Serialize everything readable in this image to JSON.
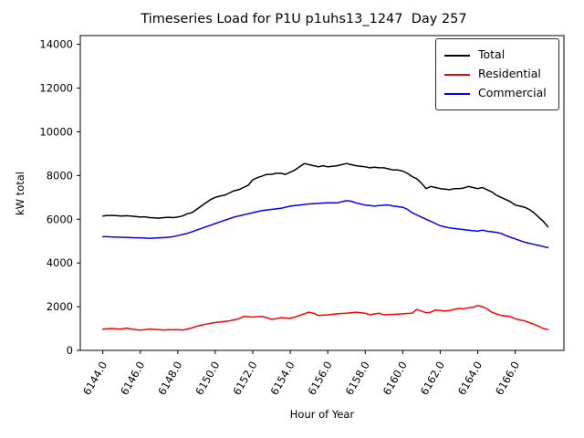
{
  "chart_data": {
    "type": "line",
    "title": "Timeseries Load for P1U p1uhs13_1247  Day 257",
    "xlabel": "Hour of Year",
    "ylabel": "kW total",
    "grid": false,
    "legend_position": "upper right",
    "xlim": [
      6142.8,
      6168.6
    ],
    "ylim": [
      0,
      14400
    ],
    "xticks": [
      6144,
      6146,
      6148,
      6150,
      6152,
      6154,
      6156,
      6158,
      6160,
      6162,
      6164,
      6166
    ],
    "xtick_labels": [
      "6144.0",
      "6146.0",
      "6148.0",
      "6150.0",
      "6152.0",
      "6154.0",
      "6156.0",
      "6158.0",
      "6160.0",
      "6162.0",
      "6164.0",
      "6166.0"
    ],
    "yticks": [
      0,
      2000,
      4000,
      6000,
      8000,
      10000,
      12000,
      14000
    ],
    "ytick_labels": [
      "0",
      "2000",
      "4000",
      "6000",
      "8000",
      "10000",
      "12000",
      "14000"
    ],
    "x": [
      6144.0,
      6144.25,
      6144.5,
      6144.75,
      6145.0,
      6145.25,
      6145.5,
      6145.75,
      6146.0,
      6146.25,
      6146.5,
      6146.75,
      6147.0,
      6147.25,
      6147.5,
      6147.75,
      6148.0,
      6148.25,
      6148.5,
      6148.75,
      6149.0,
      6149.25,
      6149.5,
      6149.75,
      6150.0,
      6150.25,
      6150.5,
      6150.75,
      6151.0,
      6151.25,
      6151.5,
      6151.75,
      6152.0,
      6152.25,
      6152.5,
      6152.75,
      6153.0,
      6153.25,
      6153.5,
      6153.75,
      6154.0,
      6154.25,
      6154.5,
      6154.75,
      6155.0,
      6155.25,
      6155.5,
      6155.75,
      6156.0,
      6156.25,
      6156.5,
      6156.75,
      6157.0,
      6157.25,
      6157.5,
      6157.75,
      6158.0,
      6158.25,
      6158.5,
      6158.75,
      6159.0,
      6159.25,
      6159.5,
      6159.75,
      6160.0,
      6160.25,
      6160.5,
      6160.75,
      6161.0,
      6161.25,
      6161.5,
      6161.75,
      6162.0,
      6162.25,
      6162.5,
      6162.75,
      6163.0,
      6163.25,
      6163.5,
      6163.75,
      6164.0,
      6164.25,
      6164.5,
      6164.75,
      6165.0,
      6165.25,
      6165.5,
      6165.75,
      6166.0,
      6166.25,
      6166.5,
      6166.75,
      6167.0,
      6167.25,
      6167.5,
      6167.75
    ],
    "series": [
      {
        "name": "Total",
        "color": "#000000",
        "values": [
          6150,
          6175,
          6175,
          6160,
          6150,
          6160,
          6150,
          6125,
          6100,
          6110,
          6075,
          6060,
          6050,
          6075,
          6090,
          6075,
          6100,
          6150,
          6250,
          6300,
          6450,
          6600,
          6750,
          6900,
          7000,
          7060,
          7100,
          7200,
          7300,
          7350,
          7450,
          7550,
          7800,
          7900,
          7975,
          8050,
          8050,
          8100,
          8100,
          8050,
          8150,
          8250,
          8400,
          8550,
          8500,
          8450,
          8400,
          8450,
          8400,
          8425,
          8450,
          8500,
          8550,
          8500,
          8450,
          8425,
          8400,
          8350,
          8375,
          8350,
          8350,
          8300,
          8250,
          8250,
          8200,
          8100,
          7950,
          7850,
          7650,
          7400,
          7500,
          7450,
          7400,
          7375,
          7350,
          7400,
          7400,
          7425,
          7500,
          7450,
          7400,
          7450,
          7350,
          7250,
          7100,
          7000,
          6900,
          6800,
          6650,
          6600,
          6550,
          6450,
          6300,
          6100,
          5900,
          5650
        ]
      },
      {
        "name": "Residential",
        "color": "#ff0000",
        "values": [
          975,
          990,
          1000,
          985,
          975,
          1020,
          980,
          950,
          925,
          950,
          975,
          960,
          950,
          925,
          950,
          945,
          950,
          925,
          975,
          1025,
          1100,
          1150,
          1200,
          1240,
          1275,
          1300,
          1325,
          1350,
          1400,
          1450,
          1550,
          1540,
          1525,
          1540,
          1550,
          1500,
          1425,
          1450,
          1500,
          1480,
          1475,
          1525,
          1600,
          1675,
          1750,
          1700,
          1600,
          1610,
          1625,
          1650,
          1675,
          1690,
          1700,
          1725,
          1750,
          1725,
          1700,
          1625,
          1675,
          1700,
          1625,
          1640,
          1650,
          1660,
          1675,
          1690,
          1700,
          1875,
          1800,
          1725,
          1750,
          1850,
          1825,
          1800,
          1825,
          1875,
          1925,
          1900,
          1950,
          1975,
          2050,
          2000,
          1900,
          1750,
          1675,
          1600,
          1575,
          1550,
          1450,
          1400,
          1350,
          1275,
          1200,
          1100,
          1000,
          950
        ]
      },
      {
        "name": "Commercial",
        "color": "#0000ff",
        "values": [
          5200,
          5200,
          5190,
          5180,
          5175,
          5170,
          5160,
          5150,
          5150,
          5140,
          5125,
          5140,
          5150,
          5160,
          5175,
          5200,
          5250,
          5300,
          5350,
          5420,
          5500,
          5575,
          5650,
          5725,
          5800,
          5875,
          5950,
          6025,
          6100,
          6150,
          6200,
          6250,
          6300,
          6350,
          6400,
          6425,
          6450,
          6475,
          6500,
          6550,
          6600,
          6625,
          6650,
          6675,
          6700,
          6710,
          6725,
          6740,
          6750,
          6750,
          6750,
          6800,
          6850,
          6825,
          6750,
          6700,
          6650,
          6625,
          6600,
          6625,
          6650,
          6650,
          6600,
          6575,
          6550,
          6450,
          6300,
          6200,
          6100,
          6000,
          5900,
          5800,
          5700,
          5650,
          5600,
          5575,
          5550,
          5525,
          5500,
          5475,
          5450,
          5500,
          5450,
          5425,
          5400,
          5350,
          5250,
          5175,
          5100,
          5025,
          4950,
          4900,
          4850,
          4800,
          4750,
          4700
        ]
      }
    ]
  }
}
